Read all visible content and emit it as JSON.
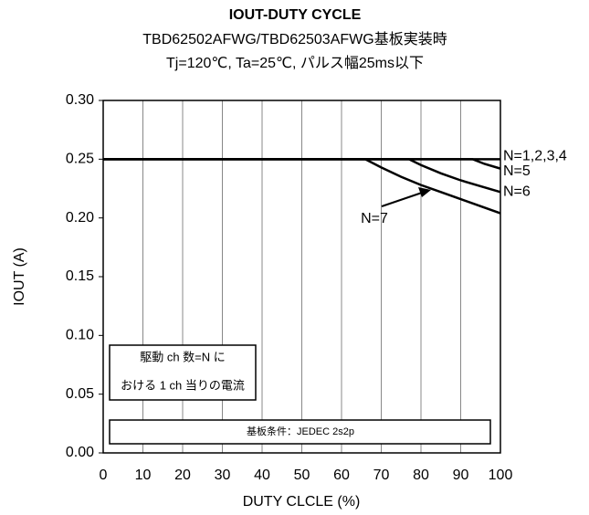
{
  "chart_data": {
    "type": "line",
    "title": "IOUT-DUTY CYCLE",
    "subtitle": [
      "TBD62502AFWG/TBD62503AFWG基板実装時",
      "Tj=120℃, Ta=25℃, パルス幅25ms以下"
    ],
    "x_label": "DUTY CLCLE (%)",
    "y_label": "IOUT (A)",
    "xlim": [
      0,
      100
    ],
    "xticks": [
      0,
      10,
      20,
      30,
      40,
      50,
      60,
      70,
      80,
      90,
      100
    ],
    "ylim": [
      0,
      0.3
    ],
    "yticks": [
      {
        "value": 0,
        "label": "0.00"
      },
      0.05,
      {
        "value": 0.1,
        "label": "0.10"
      },
      0.15,
      {
        "value": 0.2,
        "label": "0.20"
      },
      0.25,
      {
        "value": 0.3,
        "label": "0.30"
      }
    ],
    "grid": "x",
    "series": [
      {
        "name": "N=1,2,3,4",
        "color": "#000000",
        "x": [
          0,
          100
        ],
        "values": [
          0.25,
          0.25
        ]
      },
      {
        "name": "N=5",
        "color": "#000000",
        "x": [
          0,
          93,
          96,
          100
        ],
        "values": [
          0.25,
          0.25,
          0.246,
          0.242
        ]
      },
      {
        "name": "N=6",
        "color": "#000000",
        "x": [
          0,
          77,
          80,
          85,
          90,
          95,
          100
        ],
        "values": [
          0.25,
          0.25,
          0.245,
          0.238,
          0.232,
          0.227,
          0.222
        ]
      },
      {
        "name": "N=7",
        "color": "#000000",
        "x": [
          0,
          66,
          70,
          75,
          80,
          85,
          90,
          95,
          100
        ],
        "values": [
          0.25,
          0.25,
          0.243,
          0.235,
          0.228,
          0.222,
          0.216,
          0.21,
          0.204
        ]
      }
    ],
    "annotations": [
      [
        "駆動 ch 数=N に",
        "おける 1 ch 当りの電流"
      ],
      "基板条件：JEDEC 2s2p"
    ]
  }
}
